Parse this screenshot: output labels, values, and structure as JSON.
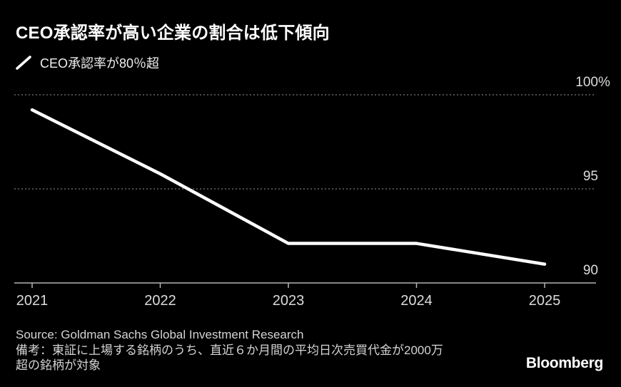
{
  "colors": {
    "background": "#000000",
    "title": "#ffffff",
    "legend_text": "#f0f0f0",
    "gridline": "#7a7a7a",
    "axis": "#b5b5b5",
    "tick_label": "#dcdcdc",
    "footer_text": "#d4d4d4",
    "data_line": "#ffffff"
  },
  "header": {
    "title": "CEO承認率が高い企業の割合は低下傾向",
    "legend": {
      "marker": "diagonal-line",
      "label": "CEO承認率が80％超"
    }
  },
  "chart_data": {
    "type": "line",
    "title": "CEO承認率が高い企業の割合は低下傾向",
    "categories": [
      "2021",
      "2022",
      "2023",
      "2024",
      "2025"
    ],
    "series": [
      {
        "name": "CEO承認率が80％超",
        "values": [
          99.2,
          95.8,
          92.1,
          92.1,
          91.0
        ]
      }
    ],
    "xlabel": "",
    "ylabel": "",
    "ylim": [
      90,
      100
    ],
    "y_ticks": [
      {
        "value": 100,
        "label": "100",
        "suffix": "%"
      },
      {
        "value": 95,
        "label": "95",
        "suffix": ""
      },
      {
        "value": 90,
        "label": "90",
        "suffix": ""
      }
    ],
    "grid": "horizontal dotted gridlines at 100 and 95; solid baseline at 90",
    "legend_position": "top-left"
  },
  "footer": {
    "source": "Source: Goldman Sachs Global Investment Research",
    "note_lines": [
      "備考：東証に上場する銘柄のうち、直近６か月間の平均日次売買代金が2000万",
      "超の銘柄が対象"
    ],
    "logo": "Bloomberg"
  }
}
